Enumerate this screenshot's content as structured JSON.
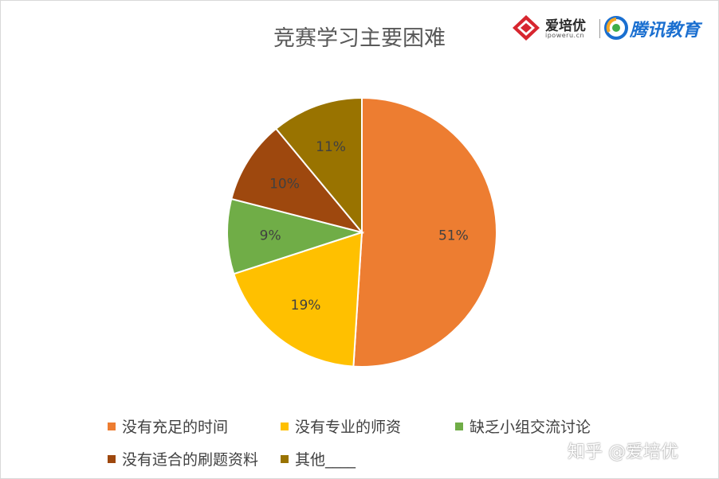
{
  "header": {
    "logo_ipy_text": "爱培优",
    "logo_ipy_sub": "ipoweru.cn",
    "logo_tencent_text": "腾讯教育"
  },
  "watermark": "知乎 @爱培优",
  "colors": {
    "orange": "#ED7D31",
    "gold": "#FFC000",
    "green": "#70AD47",
    "brown": "#9E480E",
    "olive": "#997300",
    "ipy_red": "#d7262f",
    "tencent_blue": "#1a6fd0"
  },
  "chart_data": {
    "type": "pie",
    "title": "竞赛学习主要困难",
    "legend_placement": "bottom",
    "slices": [
      {
        "label": "没有充足的时间",
        "value": 51,
        "display": "51%",
        "color": "#ED7D31"
      },
      {
        "label": "没有专业的师资",
        "value": 19,
        "display": "19%",
        "color": "#FFC000"
      },
      {
        "label": "缺乏小组交流讨论",
        "value": 9,
        "display": "9%",
        "color": "#70AD47"
      },
      {
        "label": "没有适合的刷题资料",
        "value": 10,
        "display": "10%",
        "color": "#9E480E"
      },
      {
        "label": "其他____",
        "value": 11,
        "display": "11%",
        "color": "#997300"
      }
    ]
  }
}
